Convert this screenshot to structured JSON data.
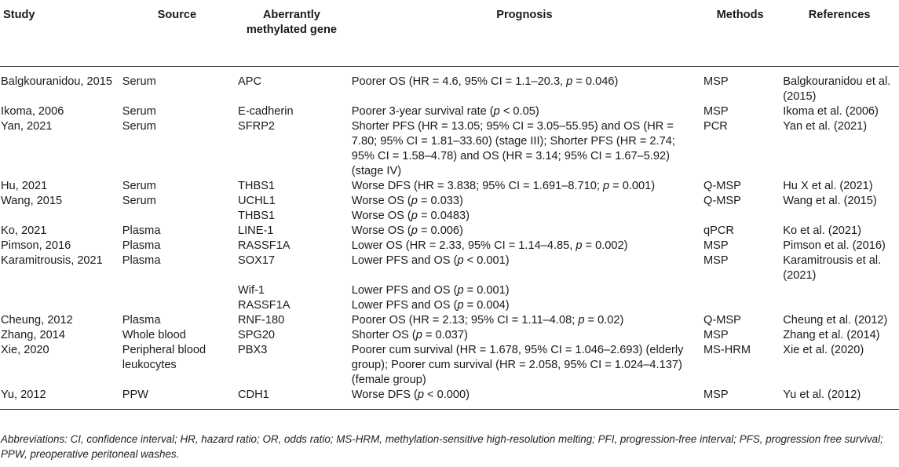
{
  "headers": {
    "study": "Study",
    "source": "Source",
    "gene": "Aberrantly methylated gene",
    "prognosis": "Prognosis",
    "methods": "Methods",
    "references": "References"
  },
  "rows": [
    {
      "study": "Balgkouranidou, 2015",
      "source": "Serum",
      "gene": "APC",
      "prognosis": "Poorer OS (HR = 4.6, 95% CI = 1.1–20.3, p = 0.046)",
      "methods": "MSP",
      "references": "Balgkouranidou et al. (2015)"
    },
    {
      "study": "Ikoma, 2006",
      "source": "Serum",
      "gene": "E-cadherin",
      "prognosis": "Poorer 3-year survival rate (p < 0.05)",
      "methods": "MSP",
      "references": "Ikoma et al. (2006)"
    },
    {
      "study": "Yan, 2021",
      "source": "Serum",
      "gene": "SFRP2",
      "prognosis": "Shorter PFS (HR = 13.05; 95% CI = 3.05–55.95) and OS (HR = 7.80; 95% CI = 1.81–33.60) (stage III); Shorter PFS (HR = 2.74; 95% CI = 1.58–4.78) and OS (HR = 3.14; 95% CI = 1.67–5.92) (stage IV)",
      "methods": "PCR",
      "references": "Yan et al. (2021)"
    },
    {
      "study": "Hu, 2021",
      "source": "Serum",
      "gene": "THBS1",
      "prognosis": "Worse DFS (HR = 3.838; 95% CI = 1.691–8.710; p = 0.001)",
      "methods": "Q-MSP",
      "references": "Hu X et al. (2021)"
    },
    {
      "study": "Wang, 2015",
      "source": "Serum",
      "gene": "UCHL1",
      "prognosis": "Worse OS (p = 0.033)",
      "methods": "Q-MSP",
      "references": "Wang et al. (2015)"
    },
    {
      "study": "",
      "source": "",
      "gene": "THBS1",
      "prognosis": "Worse OS (p = 0.0483)",
      "methods": "",
      "references": ""
    },
    {
      "study": "Ko, 2021",
      "source": "Plasma",
      "gene": "LINE-1",
      "prognosis": "Worse OS (p = 0.006)",
      "methods": "qPCR",
      "references": "Ko et al. (2021)"
    },
    {
      "study": "Pimson, 2016",
      "source": "Plasma",
      "gene": "RASSF1A",
      "prognosis": "Lower OS (HR = 2.33, 95% CI = 1.14–4.85, p = 0.002)",
      "methods": "MSP",
      "references": "Pimson et al. (2016)"
    },
    {
      "study": "Karamitrousis, 2021",
      "source": "Plasma",
      "gene": "SOX17",
      "prognosis": "Lower PFS and OS (p < 0.001)",
      "methods": "MSP",
      "references": "Karamitrousis et al. (2021)"
    },
    {
      "study": "",
      "source": "",
      "gene": "Wif-1",
      "prognosis": "Lower PFS and OS (p = 0.001)",
      "methods": "",
      "references": ""
    },
    {
      "study": "",
      "source": "",
      "gene": "RASSF1A",
      "prognosis": "Lower PFS and OS (p = 0.004)",
      "methods": "",
      "references": ""
    },
    {
      "study": "Cheung, 2012",
      "source": "Plasma",
      "gene": "RNF-180",
      "prognosis": "Poorer OS (HR = 2.13; 95% CI = 1.11–4.08; p = 0.02)",
      "methods": "Q-MSP",
      "references": "Cheung et al. (2012)"
    },
    {
      "study": "Zhang, 2014",
      "source": "Whole blood",
      "gene": "SPG20",
      "prognosis": "Shorter OS (p = 0.037)",
      "methods": "MSP",
      "references": "Zhang et al. (2014)"
    },
    {
      "study": "Xie, 2020",
      "source": "Peripheral blood leukocytes",
      "gene": "PBX3",
      "prognosis": "Poorer cum survival (HR = 1.678, 95% CI = 1.046–2.693) (elderly group); Poorer cum survival (HR = 2.058, 95% CI = 1.024–4.137) (female group)",
      "methods": "MS-HRM",
      "references": "Xie et al. (2020)"
    },
    {
      "study": "Yu, 2012",
      "source": "PPW",
      "gene": "CDH1",
      "prognosis": "Worse DFS (p < 0.000)",
      "methods": "MSP",
      "references": "Yu et al. (2012)"
    }
  ],
  "footnote": "Abbreviations: CI, confidence interval; HR, hazard ratio; OR, odds ratio; MS-HRM, methylation-sensitive high-resolution melting; PFI, progression-free interval; PFS, progression free survival; PPW, preoperative peritoneal washes."
}
